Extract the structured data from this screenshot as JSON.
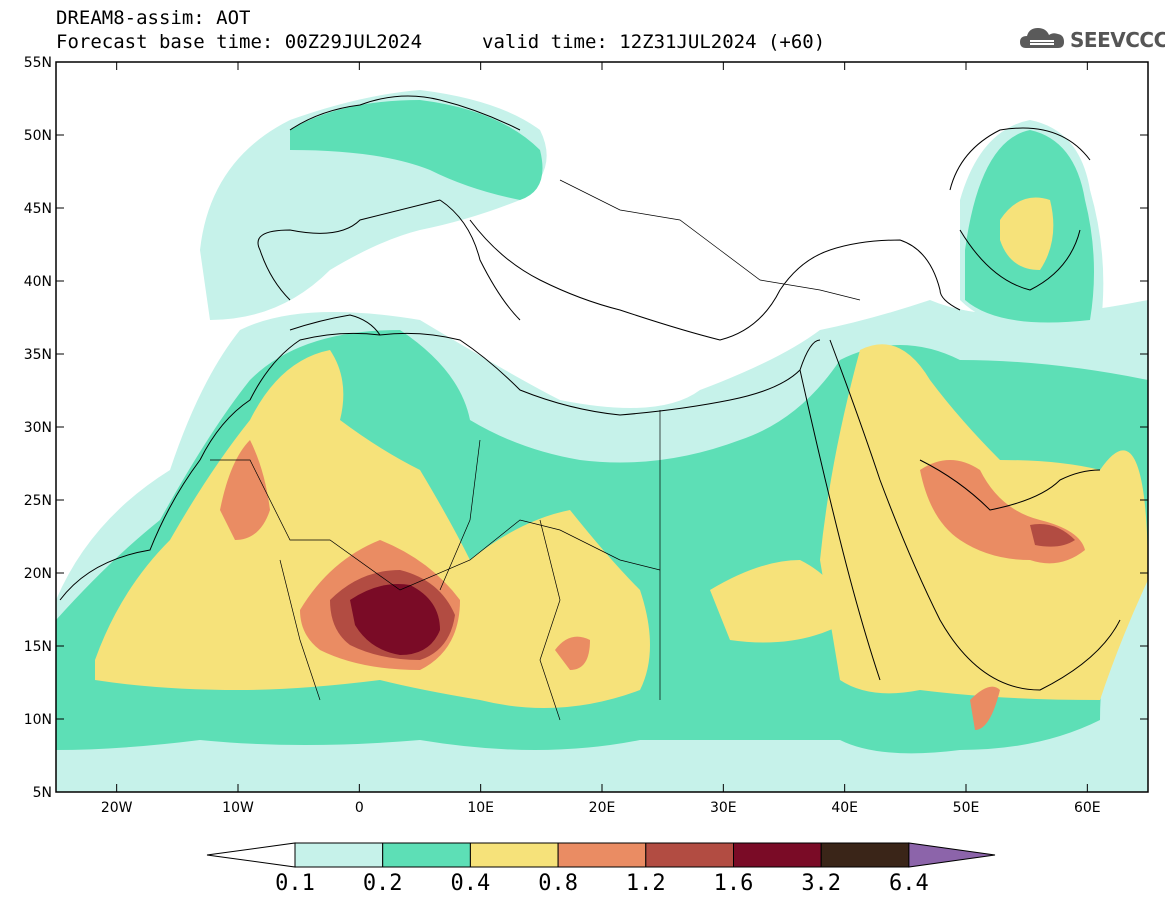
{
  "header": {
    "title": "DREAM8-assim: AOT",
    "base_time": "Forecast base time: 00Z29JUL2024",
    "valid_time": "valid time: 12Z31JUL2024 (+60)",
    "logo_text": "SEEVCCC"
  },
  "map": {
    "lon_range": [
      -25,
      65
    ],
    "lat_range": [
      5,
      55
    ],
    "lon_ticks": [
      {
        "lon": -20,
        "label": "20W"
      },
      {
        "lon": -10,
        "label": "10W"
      },
      {
        "lon": 0,
        "label": "0"
      },
      {
        "lon": 10,
        "label": "10E"
      },
      {
        "lon": 20,
        "label": "20E"
      },
      {
        "lon": 30,
        "label": "30E"
      },
      {
        "lon": 40,
        "label": "40E"
      },
      {
        "lon": 50,
        "label": "50E"
      },
      {
        "lon": 60,
        "label": "60E"
      }
    ],
    "lat_ticks": [
      {
        "lat": 55,
        "label": "55N"
      },
      {
        "lat": 50,
        "label": "50N"
      },
      {
        "lat": 45,
        "label": "45N"
      },
      {
        "lat": 40,
        "label": "40N"
      },
      {
        "lat": 35,
        "label": "35N"
      },
      {
        "lat": 30,
        "label": "30N"
      },
      {
        "lat": 25,
        "label": "25N"
      },
      {
        "lat": 20,
        "label": "20N"
      },
      {
        "lat": 15,
        "label": "15N"
      },
      {
        "lat": 10,
        "label": "10N"
      },
      {
        "lat": 5,
        "label": "5N"
      }
    ]
  },
  "colorbar": {
    "levels": [
      "0.1",
      "0.2",
      "0.4",
      "0.8",
      "1.2",
      "1.6",
      "3.2",
      "6.4"
    ],
    "colors": [
      "#ffffff",
      "#c6f2ea",
      "#5ddfb6",
      "#f6e27a",
      "#ea8c63",
      "#b24c42",
      "#7a0b26",
      "#3a2518",
      "#8c64aa"
    ]
  }
}
